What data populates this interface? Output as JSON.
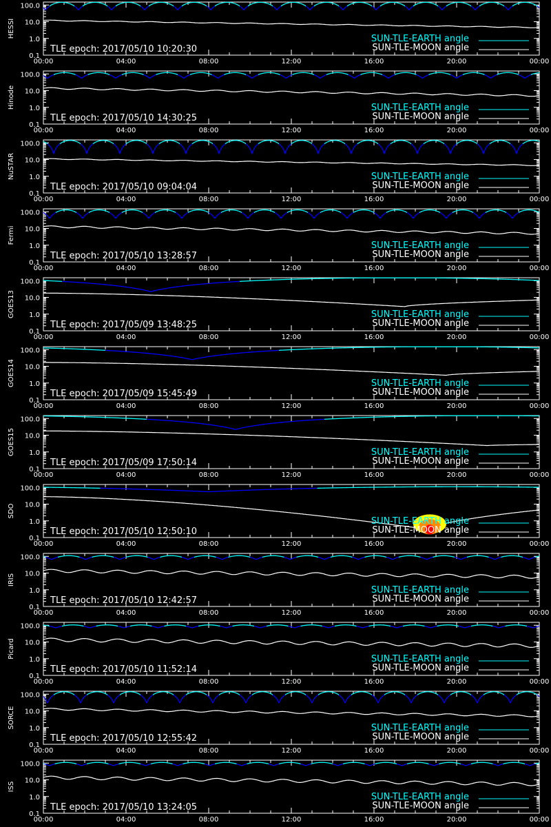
{
  "chart_data": [
    {
      "type": "line",
      "ylabel": "HESSI",
      "epoch": "TLE epoch: 2017/05/10 10:20:30",
      "yticks": [
        "100.0",
        "10.0",
        "1.0",
        "0.1"
      ],
      "xticks": [
        "00:00",
        "04:00",
        "08:00",
        "12:00",
        "16:00",
        "20:00",
        "00:00"
      ],
      "yscale": "log",
      "ylim": [
        0.1,
        150
      ],
      "xlim_hours": [
        0,
        24
      ],
      "legend": [
        "SUN-TLE-EARTH angle",
        "SUN-TLE-MOON angle"
      ],
      "series": [
        {
          "name": "SUN-TLE-EARTH angle",
          "kind": "orbit",
          "min": 50,
          "max": 145,
          "period_h": 1.6,
          "phase_h": 0.1
        },
        {
          "name": "SUN-TLE-MOON angle",
          "kind": "moon",
          "start": 12,
          "end": 4.5,
          "wiggle": 0.05
        }
      ]
    },
    {
      "type": "line",
      "ylabel": "Hinode",
      "epoch": "TLE epoch: 2017/05/10 14:30:25",
      "yticks": [
        "100.0",
        "10.0",
        "1.0",
        "0.1"
      ],
      "xticks": [
        "00:00",
        "04:00",
        "08:00",
        "12:00",
        "16:00",
        "20:00",
        "00:00"
      ],
      "yscale": "log",
      "ylim": [
        0.1,
        150
      ],
      "xlim_hours": [
        0,
        24
      ],
      "legend": [
        "SUN-TLE-EARTH angle",
        "SUN-TLE-MOON angle"
      ],
      "series": [
        {
          "name": "SUN-TLE-EARTH angle",
          "kind": "orbit",
          "min": 55,
          "max": 120,
          "period_h": 1.65,
          "phase_h": 0.2
        },
        {
          "name": "SUN-TLE-MOON angle",
          "kind": "moon",
          "start": 14,
          "end": 5,
          "wiggle": 0.1
        }
      ]
    },
    {
      "type": "line",
      "ylabel": "NuSTAR",
      "epoch": "TLE epoch: 2017/05/10 09:04:04",
      "yticks": [
        "100.0",
        "10.0",
        "1.0",
        "0.1"
      ],
      "xticks": [
        "00:00",
        "04:00",
        "08:00",
        "12:00",
        "16:00",
        "20:00",
        "00:00"
      ],
      "yscale": "log",
      "ylim": [
        0.1,
        150
      ],
      "xlim_hours": [
        0,
        24
      ],
      "legend": [
        "SUN-TLE-EARTH angle",
        "SUN-TLE-MOON angle"
      ],
      "series": [
        {
          "name": "SUN-TLE-EARTH angle",
          "kind": "orbit",
          "min": 22,
          "max": 140,
          "period_h": 1.6,
          "phase_h": 0.5
        },
        {
          "name": "SUN-TLE-MOON angle",
          "kind": "moon",
          "start": 11,
          "end": 4.5,
          "wiggle": 0.05
        }
      ]
    },
    {
      "type": "line",
      "ylabel": "Fermi",
      "epoch": "TLE epoch: 2017/05/10 13:28:57",
      "yticks": [
        "100.0",
        "10.0",
        "1.0",
        "0.1"
      ],
      "xticks": [
        "00:00",
        "04:00",
        "08:00",
        "12:00",
        "16:00",
        "20:00",
        "00:00"
      ],
      "yscale": "log",
      "ylim": [
        0.1,
        150
      ],
      "xlim_hours": [
        0,
        24
      ],
      "legend": [
        "SUN-TLE-EARTH angle",
        "SUN-TLE-MOON angle"
      ],
      "series": [
        {
          "name": "SUN-TLE-EARTH angle",
          "kind": "orbit",
          "min": 40,
          "max": 130,
          "period_h": 1.6,
          "phase_h": 0.3
        },
        {
          "name": "SUN-TLE-MOON angle",
          "kind": "moon",
          "start": 13,
          "end": 5,
          "wiggle": 0.12
        }
      ]
    },
    {
      "type": "line",
      "ylabel": "GOES13",
      "epoch": "TLE epoch: 2017/05/09 13:48:25",
      "yticks": [
        "100.0",
        "10.0",
        "1.0",
        "0.1"
      ],
      "xticks": [
        "00:00",
        "04:00",
        "08:00",
        "12:00",
        "16:00",
        "20:00",
        "00:00"
      ],
      "yscale": "log",
      "ylim": [
        0.1,
        150
      ],
      "xlim_hours": [
        0,
        24
      ],
      "legend": [
        "SUN-TLE-EARTH angle",
        "SUN-TLE-MOON angle"
      ],
      "series": [
        {
          "name": "SUN-TLE-EARTH angle",
          "kind": "geo",
          "min": 22,
          "max": 150,
          "tmin_h": 5.2
        },
        {
          "name": "SUN-TLE-MOON angle",
          "kind": "vshape",
          "start": 18,
          "vmin": 2.8,
          "tmin_h": 17.5,
          "end": 7
        }
      ]
    },
    {
      "type": "line",
      "ylabel": "GOES14",
      "epoch": "TLE epoch: 2017/05/09 15:45:49",
      "yticks": [
        "100.0",
        "10.0",
        "1.0",
        "0.1"
      ],
      "xticks": [
        "00:00",
        "04:00",
        "08:00",
        "12:00",
        "16:00",
        "20:00",
        "00:00"
      ],
      "yscale": "log",
      "ylim": [
        0.1,
        150
      ],
      "xlim_hours": [
        0,
        24
      ],
      "legend": [
        "SUN-TLE-EARTH angle",
        "SUN-TLE-MOON angle"
      ],
      "series": [
        {
          "name": "SUN-TLE-EARTH angle",
          "kind": "geo",
          "min": 25,
          "max": 150,
          "tmin_h": 7.2
        },
        {
          "name": "SUN-TLE-MOON angle",
          "kind": "vshape",
          "start": 17,
          "vmin": 2.9,
          "tmin_h": 19.5,
          "end": 5
        }
      ]
    },
    {
      "type": "line",
      "ylabel": "GOES15",
      "epoch": "TLE epoch: 2017/05/09 17:50:14",
      "yticks": [
        "100.0",
        "10.0",
        "1.0",
        "0.1"
      ],
      "xticks": [
        "00:00",
        "04:00",
        "08:00",
        "12:00",
        "16:00",
        "20:00",
        "00:00"
      ],
      "yscale": "log",
      "ylim": [
        0.1,
        150
      ],
      "xlim_hours": [
        0,
        24
      ],
      "legend": [
        "SUN-TLE-EARTH angle",
        "SUN-TLE-MOON angle"
      ],
      "series": [
        {
          "name": "SUN-TLE-EARTH angle",
          "kind": "geo",
          "min": 22,
          "max": 150,
          "tmin_h": 9.3
        },
        {
          "name": "SUN-TLE-MOON angle",
          "kind": "vshape",
          "start": 18,
          "vmin": 2.4,
          "tmin_h": 21.5,
          "end": 2.8
        }
      ]
    },
    {
      "type": "line",
      "ylabel": "SDO",
      "epoch": "TLE epoch: 2017/05/10 12:50:10",
      "yticks": [
        "100.0",
        "10.0",
        "1.0",
        "0.1"
      ],
      "xticks": [
        "00:00",
        "04:00",
        "08:00",
        "12:00",
        "16:00",
        "20:00",
        "00:00"
      ],
      "yscale": "log",
      "ylim": [
        0.1,
        150
      ],
      "xlim_hours": [
        0,
        24
      ],
      "legend": [
        "SUN-TLE-EARTH angle",
        "SUN-TLE-MOON angle"
      ],
      "series": [
        {
          "name": "SUN-TLE-EARTH angle",
          "kind": "geo",
          "min": 55,
          "max": 110,
          "tmin_h": 8
        },
        {
          "name": "SUN-TLE-MOON angle",
          "kind": "vshape",
          "start": 28,
          "vmin": 0.3,
          "tmin_h": 18.7,
          "end": 4.5
        }
      ],
      "annotation": {
        "hour": 18.7,
        "min_angle": 0.3,
        "colors": [
          "#ff0000",
          "#ff8c00",
          "#ffff00"
        ]
      }
    },
    {
      "type": "line",
      "ylabel": "IRIS",
      "epoch": "TLE epoch: 2017/05/10 12:42:57",
      "yticks": [
        "100.0",
        "10.0",
        "1.0",
        "0.1"
      ],
      "xticks": [
        "00:00",
        "04:00",
        "08:00",
        "12:00",
        "16:00",
        "20:00",
        "00:00"
      ],
      "yscale": "log",
      "ylim": [
        0.1,
        150
      ],
      "xlim_hours": [
        0,
        24
      ],
      "legend": [
        "SUN-TLE-EARTH angle",
        "SUN-TLE-MOON angle"
      ],
      "series": [
        {
          "name": "SUN-TLE-EARTH angle",
          "kind": "orbit",
          "min": 65,
          "max": 110,
          "period_h": 1.65,
          "phase_h": 0.4
        },
        {
          "name": "SUN-TLE-MOON angle",
          "kind": "moon",
          "start": 14,
          "end": 6,
          "wiggle": 0.2
        }
      ]
    },
    {
      "type": "line",
      "ylabel": "Picard",
      "epoch": "TLE epoch: 2017/05/10 11:52:14",
      "yticks": [
        "100.0",
        "10.0",
        "1.0",
        "0.1"
      ],
      "xticks": [
        "00:00",
        "04:00",
        "08:00",
        "12:00",
        "16:00",
        "20:00",
        "00:00"
      ],
      "yscale": "log",
      "ylim": [
        0.1,
        150
      ],
      "xlim_hours": [
        0,
        24
      ],
      "legend": [
        "SUN-TLE-EARTH angle",
        "SUN-TLE-MOON angle"
      ],
      "series": [
        {
          "name": "SUN-TLE-EARTH angle",
          "kind": "orbit",
          "min": 70,
          "max": 105,
          "period_h": 1.65,
          "phase_h": 0.6
        },
        {
          "name": "SUN-TLE-MOON angle",
          "kind": "moon",
          "start": 14,
          "end": 6,
          "wiggle": 0.22
        }
      ]
    },
    {
      "type": "line",
      "ylabel": "SORCE",
      "epoch": "TLE epoch: 2017/05/10 12:55:42",
      "yticks": [
        "100.0",
        "10.0",
        "1.0",
        "0.1"
      ],
      "xticks": [
        "00:00",
        "04:00",
        "08:00",
        "12:00",
        "16:00",
        "20:00",
        "00:00"
      ],
      "yscale": "log",
      "ylim": [
        0.1,
        150
      ],
      "xlim_hours": [
        0,
        24
      ],
      "legend": [
        "SUN-TLE-EARTH angle",
        "SUN-TLE-MOON angle"
      ],
      "series": [
        {
          "name": "SUN-TLE-EARTH angle",
          "kind": "orbit",
          "min": 30,
          "max": 140,
          "period_h": 1.6,
          "phase_h": 0.2
        },
        {
          "name": "SUN-TLE-MOON angle",
          "kind": "moon",
          "start": 13,
          "end": 5,
          "wiggle": 0.12
        }
      ]
    },
    {
      "type": "line",
      "ylabel": "ISS",
      "epoch": "TLE epoch: 2017/05/10 13:24:05",
      "yticks": [
        "100.0",
        "10.0",
        "1.0",
        "0.1"
      ],
      "xticks": [
        "00:00",
        "04:00",
        "08:00",
        "12:00",
        "16:00",
        "20:00",
        "00:00"
      ],
      "yscale": "log",
      "ylim": [
        0.1,
        150
      ],
      "xlim_hours": [
        0,
        24
      ],
      "legend": [
        "SUN-TLE-EARTH angle",
        "SUN-TLE-MOON angle"
      ],
      "series": [
        {
          "name": "SUN-TLE-EARTH angle",
          "kind": "orbit",
          "min": 70,
          "max": 110,
          "period_h": 1.55,
          "phase_h": 0.3
        },
        {
          "name": "SUN-TLE-MOON angle",
          "kind": "moon",
          "start": 14,
          "end": 5.5,
          "wiggle": 0.2
        }
      ]
    }
  ],
  "colors": {
    "background": "#000000",
    "axes": "#ffffff",
    "earth_bright": "#00ffff",
    "earth_dark": "#0000ff",
    "moon": "#ffffff"
  }
}
